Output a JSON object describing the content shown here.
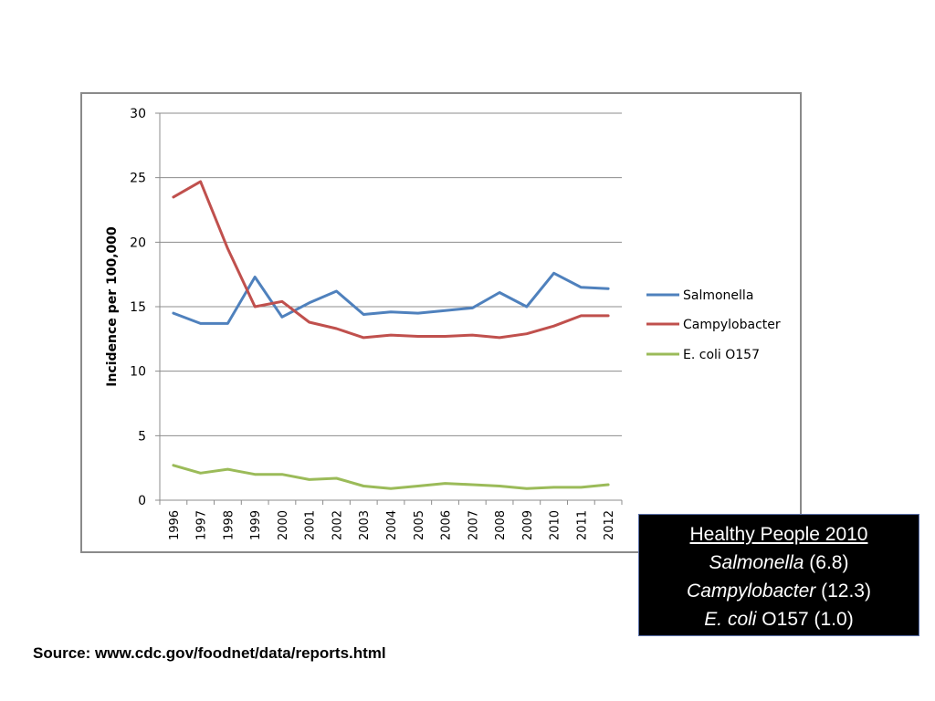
{
  "chart_data": {
    "type": "line",
    "ylabel": "Incidence per 100,000",
    "ylim": [
      0,
      30
    ],
    "yticks": [
      "0",
      "5",
      "10",
      "15",
      "20",
      "25",
      "30"
    ],
    "categories": [
      "1996",
      "1997",
      "1998",
      "1999",
      "2000",
      "2001",
      "2002",
      "2003",
      "2004",
      "2005",
      "2006",
      "2007",
      "2008",
      "2009",
      "2010",
      "2011",
      "2012"
    ],
    "grid": true,
    "legend_position": "right",
    "series": [
      {
        "name": "Salmonella",
        "color": "#4f81bd",
        "values": [
          14.5,
          13.7,
          13.7,
          17.3,
          14.2,
          15.3,
          16.2,
          14.4,
          14.6,
          14.5,
          14.7,
          14.9,
          16.1,
          15.0,
          17.6,
          16.5,
          16.4
        ]
      },
      {
        "name": "Campylobacter",
        "color": "#c0504d",
        "values": [
          23.5,
          24.7,
          19.5,
          15.0,
          15.4,
          13.8,
          13.3,
          12.6,
          12.8,
          12.7,
          12.7,
          12.8,
          12.6,
          12.9,
          13.5,
          14.3,
          14.3
        ]
      },
      {
        "name": "E. coli O157",
        "color": "#9bbb59",
        "values": [
          2.7,
          2.1,
          2.4,
          2.0,
          2.0,
          1.6,
          1.7,
          1.1,
          0.9,
          1.1,
          1.3,
          1.2,
          1.1,
          0.9,
          1.0,
          1.0,
          1.2
        ]
      }
    ]
  },
  "callout": {
    "title": "Healthy People 2010",
    "lines": [
      {
        "italic": "Salmonella",
        "rest": " (6.8)"
      },
      {
        "italic": "Campylobacter",
        "rest": " (12.3)"
      },
      {
        "italic": "E. coli",
        "rest": " O157 (1.0)"
      }
    ]
  },
  "source": "Source: www.cdc.gov/foodnet/data/reports.html"
}
